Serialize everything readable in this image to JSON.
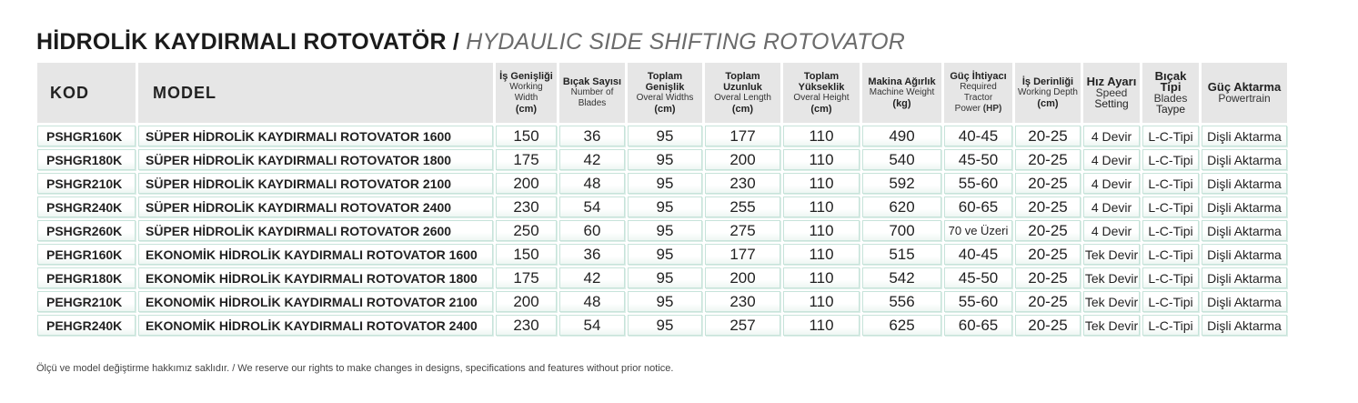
{
  "title": {
    "tr": "HİDROLİK KAYDIRMALI ROTOVATÖR",
    "separator": "/",
    "en": "HYDAULIC SIDE SHIFTING ROTOVATOR"
  },
  "headers": {
    "kod": "KOD",
    "model": "MODEL",
    "working_width": {
      "l1": "İş Genişliği",
      "l2": "Working Width",
      "l3": "(cm)"
    },
    "blades": {
      "l1": "Bıçak Sayısı",
      "l2": "Number of",
      "l3": "Blades"
    },
    "overall_width": {
      "l1": "Toplam Genişlik",
      "l2": "Overal Widths",
      "l3": "(cm)"
    },
    "overall_length": {
      "l1": "Toplam Uzunluk",
      "l2": "Overal Length",
      "l3": "(cm)"
    },
    "overall_height": {
      "l1": "Toplam Yükseklik",
      "l2": "Overal Height",
      "l3": "(cm)"
    },
    "weight": {
      "l1": "Makina Ağırlık",
      "l2": "Machine Weight",
      "l3": "(kg)"
    },
    "power": {
      "l1": "Güç İhtiyacı",
      "l2": "Required Tractor",
      "l3a": "Power ",
      "l3b": "(HP)"
    },
    "depth": {
      "l1": "İş Derinliği",
      "l2": "Working Depth",
      "l3": "(cm)"
    },
    "speed": {
      "l1": "Hız Ayarı",
      "l2": "Speed",
      "l3": "Setting"
    },
    "blade_type": {
      "l1": "Bıçak Tipi",
      "l2": "Blades",
      "l3": "Taype"
    },
    "powertrain": {
      "l1": "Güç Aktarma",
      "l2": "Powertrain"
    }
  },
  "rows": [
    {
      "kod": "PSHGR160K",
      "model": "SÜPER HİDROLİK KAYDIRMALI ROTOVATOR 1600",
      "ww": "150",
      "bl": "36",
      "ow": "95",
      "ol": "177",
      "oh": "110",
      "wt": "490",
      "hp": "40-45",
      "dp": "20-25",
      "sp": "4 Devir",
      "bt": "L-C-Tipi",
      "pt": "Dişli Aktarma"
    },
    {
      "kod": "PSHGR180K",
      "model": "SÜPER HİDROLİK KAYDIRMALI ROTOVATOR 1800",
      "ww": "175",
      "bl": "42",
      "ow": "95",
      "ol": "200",
      "oh": "110",
      "wt": "540",
      "hp": "45-50",
      "dp": "20-25",
      "sp": "4 Devir",
      "bt": "L-C-Tipi",
      "pt": "Dişli Aktarma"
    },
    {
      "kod": "PSHGR210K",
      "model": "SÜPER HİDROLİK KAYDIRMALI ROTOVATOR 2100",
      "ww": "200",
      "bl": "48",
      "ow": "95",
      "ol": "230",
      "oh": "110",
      "wt": "592",
      "hp": "55-60",
      "dp": "20-25",
      "sp": "4 Devir",
      "bt": "L-C-Tipi",
      "pt": "Dişli Aktarma"
    },
    {
      "kod": "PSHGR240K",
      "model": "SÜPER HİDROLİK KAYDIRMALI ROTOVATOR 2400",
      "ww": "230",
      "bl": "54",
      "ow": "95",
      "ol": "255",
      "oh": "110",
      "wt": "620",
      "hp": "60-65",
      "dp": "20-25",
      "sp": "4 Devir",
      "bt": "L-C-Tipi",
      "pt": "Dişli Aktarma"
    },
    {
      "kod": "PSHGR260K",
      "model": "SÜPER HİDROLİK KAYDIRMALI ROTOVATOR 2600",
      "ww": "250",
      "bl": "60",
      "ow": "95",
      "ol": "275",
      "oh": "110",
      "wt": "700",
      "hp": "70 ve Üzeri",
      "dp": "20-25",
      "sp": "4 Devir",
      "bt": "L-C-Tipi",
      "pt": "Dişli Aktarma"
    },
    {
      "kod": "PEHGR160K",
      "model": "EKONOMİK HİDROLİK KAYDIRMALI ROTOVATOR 1600",
      "ww": "150",
      "bl": "36",
      "ow": "95",
      "ol": "177",
      "oh": "110",
      "wt": "515",
      "hp": "40-45",
      "dp": "20-25",
      "sp": "Tek Devir",
      "bt": "L-C-Tipi",
      "pt": "Dişli Aktarma"
    },
    {
      "kod": "PEHGR180K",
      "model": "EKONOMİK HİDROLİK KAYDIRMALI ROTOVATOR 1800",
      "ww": "175",
      "bl": "42",
      "ow": "95",
      "ol": "200",
      "oh": "110",
      "wt": "542",
      "hp": "45-50",
      "dp": "20-25",
      "sp": "Tek Devir",
      "bt": "L-C-Tipi",
      "pt": "Dişli Aktarma"
    },
    {
      "kod": "PEHGR210K",
      "model": "EKONOMİK HİDROLİK KAYDIRMALI ROTOVATOR 2100",
      "ww": "200",
      "bl": "48",
      "ow": "95",
      "ol": "230",
      "oh": "110",
      "wt": "556",
      "hp": "55-60",
      "dp": "20-25",
      "sp": "Tek Devir",
      "bt": "L-C-Tipi",
      "pt": "Dişli Aktarma"
    },
    {
      "kod": "PEHGR240K",
      "model": "EKONOMİK HİDROLİK KAYDIRMALI ROTOVATOR 2400",
      "ww": "230",
      "bl": "54",
      "ow": "95",
      "ol": "257",
      "oh": "110",
      "wt": "625",
      "hp": "60-65",
      "dp": "20-25",
      "sp": "Tek Devir",
      "bt": "L-C-Tipi",
      "pt": "Dişli Aktarma"
    }
  ],
  "note": "Ölçü ve model değiştirme hakkımız saklıdır. / We reserve our rights to make changes in designs, specifications and features without prior notice."
}
